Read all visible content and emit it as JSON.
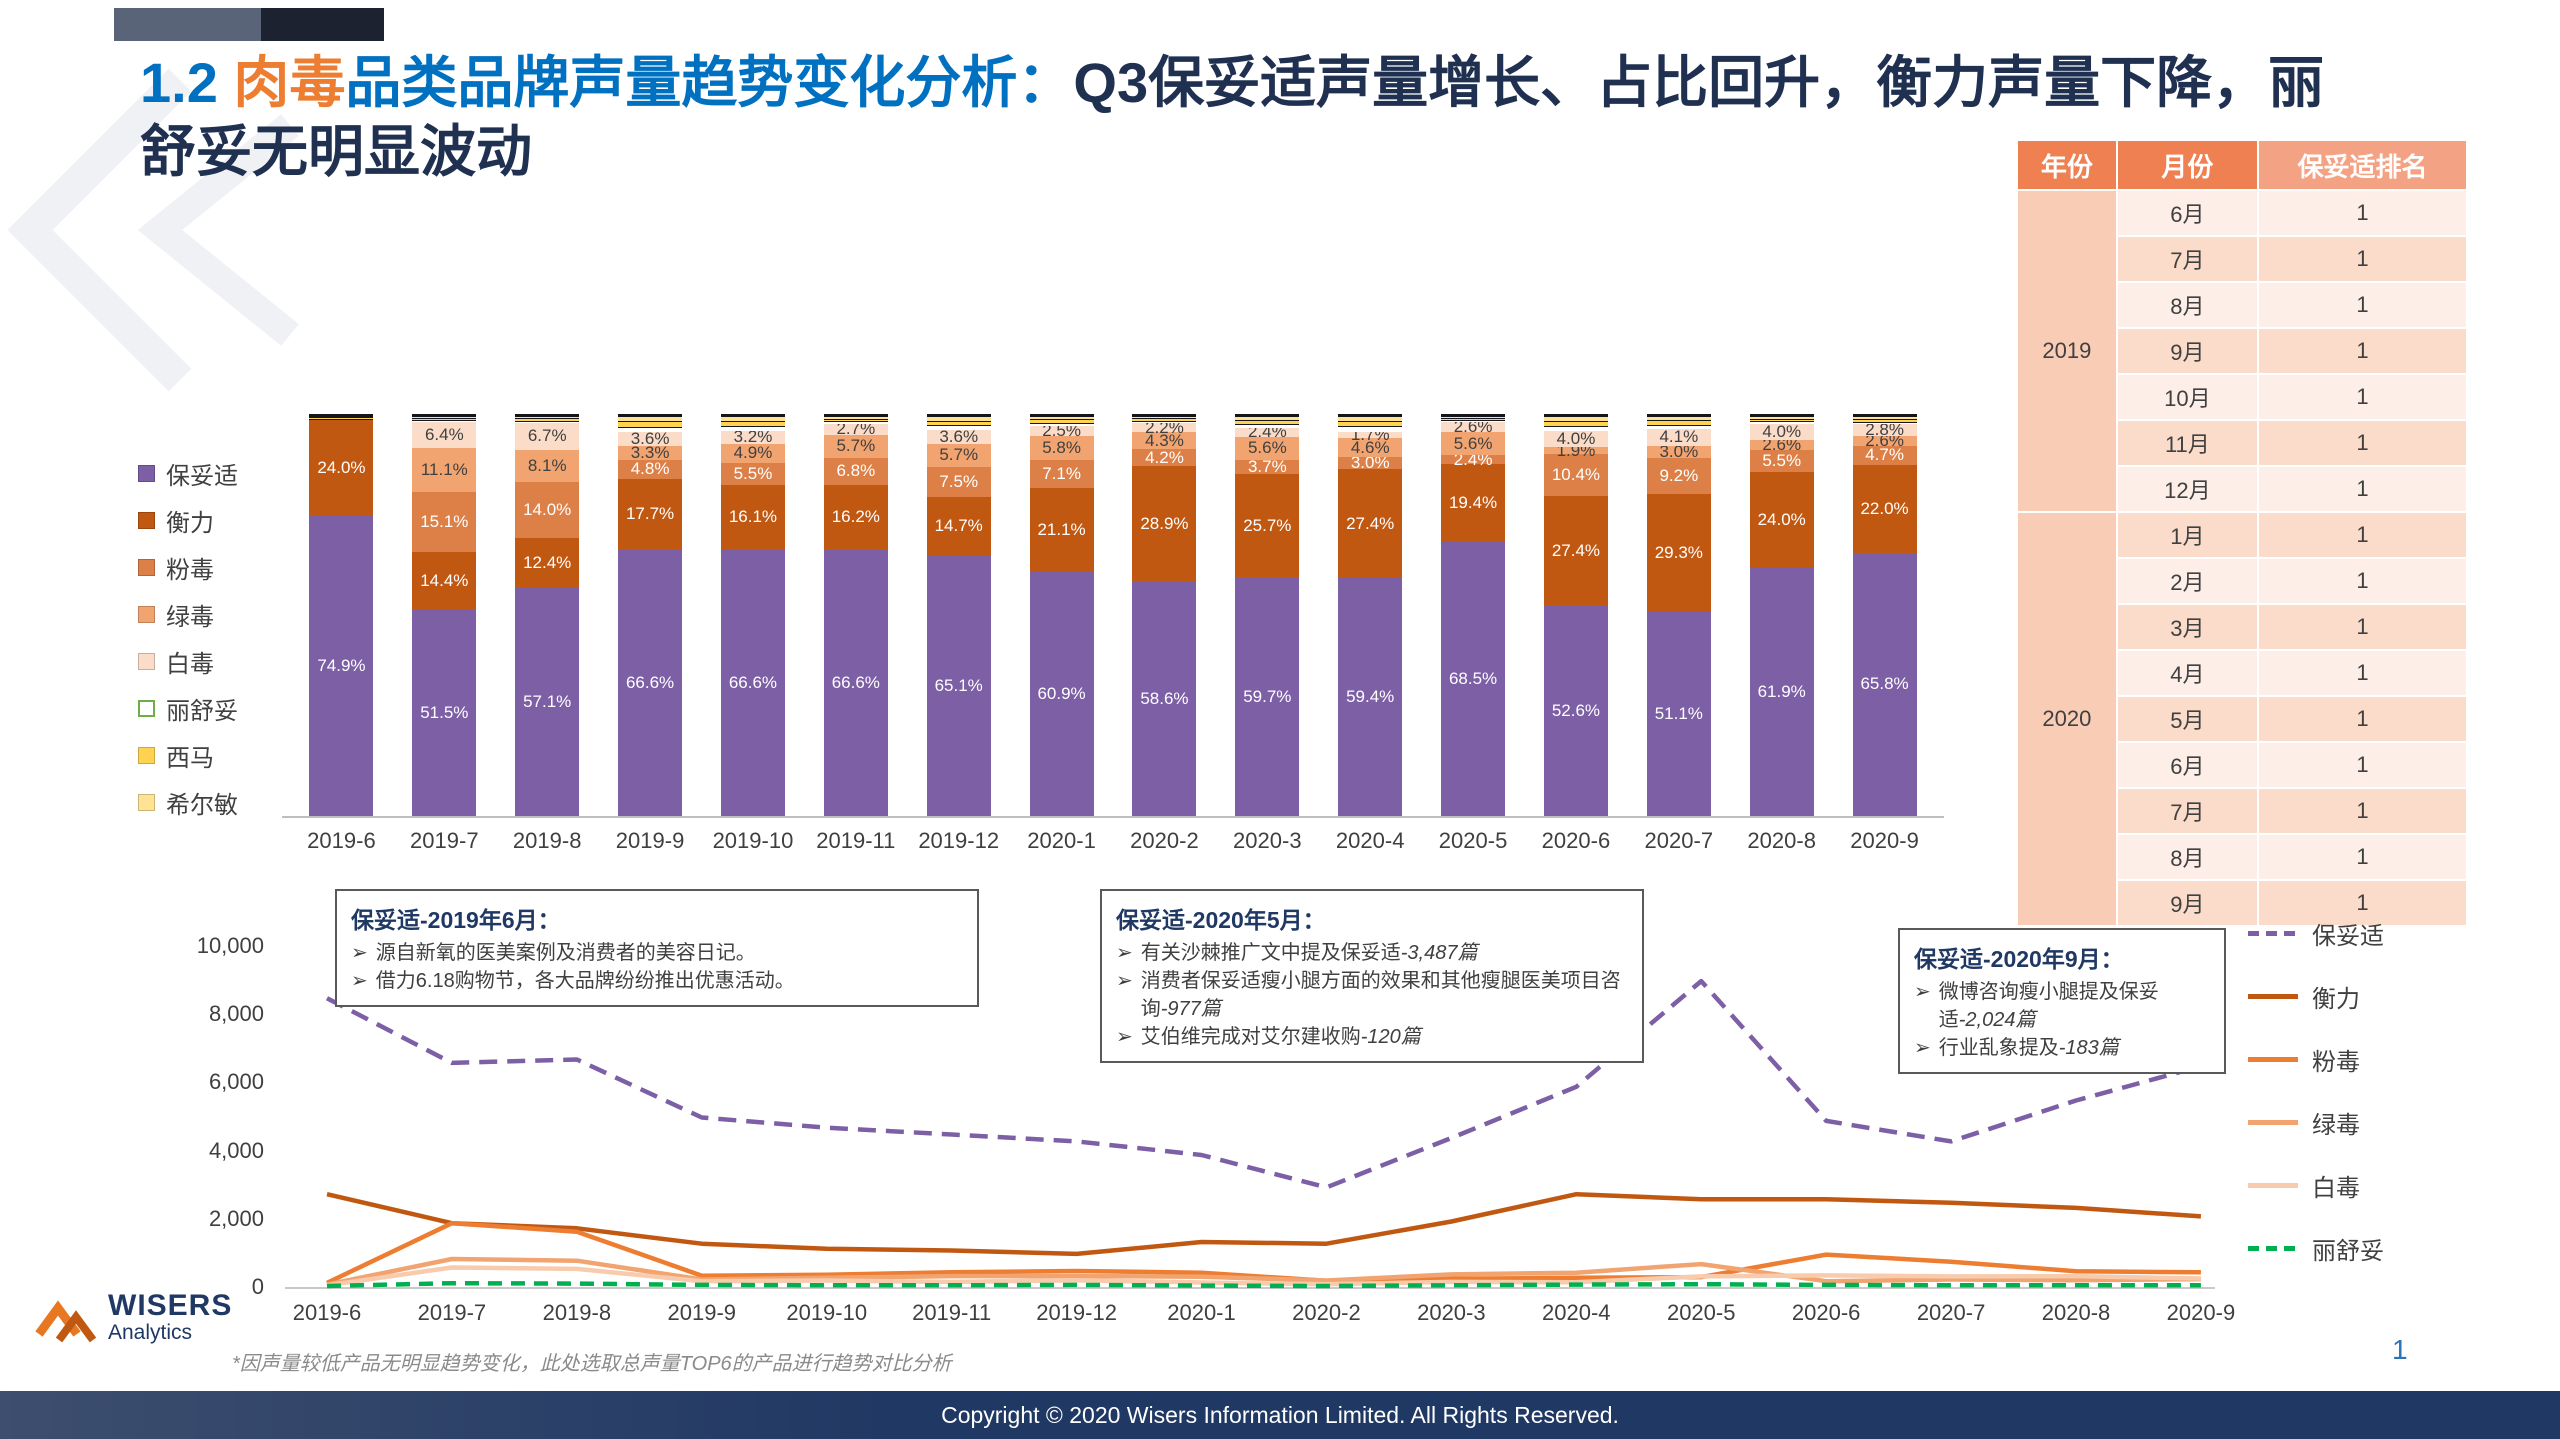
{
  "slide": {
    "title": {
      "number": "1.2 ",
      "highlight": "肉毒",
      "rest_blue": "品类品牌声量趋势变化分析：",
      "main": "Q3保妥适声量增长、占比回升，衡力声量下降，丽舒妥无明显波动"
    },
    "footnote": "*因声量较低产品无明显趋势变化，此处选取总声量TOP6的产品进行趋势对比分析",
    "footer_copyright": "Copyright © 2020 Wisers Information Limited. All Rights Reserved.",
    "page_number": "1",
    "logo": {
      "name": "WISERS",
      "sub": "Analytics"
    },
    "bullet_icon": "➢"
  },
  "rank_table": {
    "headers": [
      "年份",
      "月份",
      "保妥适排名"
    ],
    "groups": [
      {
        "year": "2019",
        "rows": [
          [
            "6月",
            "1"
          ],
          [
            "7月",
            "1"
          ],
          [
            "8月",
            "1"
          ],
          [
            "9月",
            "1"
          ],
          [
            "10月",
            "1"
          ],
          [
            "11月",
            "1"
          ],
          [
            "12月",
            "1"
          ]
        ]
      },
      {
        "year": "2020",
        "rows": [
          [
            "1月",
            "1"
          ],
          [
            "2月",
            "1"
          ],
          [
            "3月",
            "1"
          ],
          [
            "4月",
            "1"
          ],
          [
            "5月",
            "1"
          ],
          [
            "6月",
            "1"
          ],
          [
            "7月",
            "1"
          ],
          [
            "8月",
            "1"
          ],
          [
            "9月",
            "1"
          ]
        ]
      }
    ]
  },
  "notes": [
    {
      "title": "保妥适-2019年6月：",
      "bullets": [
        "源自新氧的医美案例及消费者的美容日记。",
        "借力6.18购物节，各大品牌纷纷推出优惠活动。"
      ]
    },
    {
      "title": "保妥适-2020年5月：",
      "bullets": [
        "有关沙棘推广文中提及保妥适-3,487篇",
        "消费者保妥适瘦小腿方面的效果和其他瘦腿医美项目咨询-977篇",
        "艾伯维完成对艾尔建收购-120篇"
      ]
    },
    {
      "title": "保妥适-2020年9月：",
      "bullets": [
        "微博咨询瘦小腿提及保妥适-2,024篇",
        "行业乱象提及-183篇"
      ]
    }
  ],
  "chart_data": [
    {
      "type": "bar",
      "stacked": true,
      "unit": "%",
      "legend_position": "left",
      "categories": [
        "2019-6",
        "2019-7",
        "2019-8",
        "2019-9",
        "2019-10",
        "2019-11",
        "2019-12",
        "2020-1",
        "2020-2",
        "2020-3",
        "2020-4",
        "2020-5",
        "2020-6",
        "2020-7",
        "2020-8",
        "2020-9"
      ],
      "series": [
        {
          "name": "保妥适",
          "color": "#7D5FA6",
          "values": [
            74.9,
            51.5,
            57.1,
            66.6,
            66.6,
            66.6,
            65.1,
            60.9,
            58.6,
            59.7,
            59.4,
            68.5,
            52.6,
            51.1,
            61.9,
            65.8
          ]
        },
        {
          "name": "衡力",
          "color": "#C15811",
          "values": [
            24.0,
            14.4,
            12.4,
            17.7,
            16.1,
            16.2,
            14.7,
            21.1,
            28.9,
            25.7,
            27.4,
            19.4,
            27.4,
            29.3,
            24.0,
            22.0
          ]
        },
        {
          "name": "粉毒",
          "color": "#DD8047",
          "values": [
            null,
            15.1,
            14.0,
            4.8,
            5.5,
            6.8,
            7.5,
            7.1,
            4.2,
            3.7,
            3.0,
            2.4,
            10.4,
            9.2,
            5.5,
            4.7
          ]
        },
        {
          "name": "绿毒",
          "color": "#F1A470",
          "values": [
            null,
            11.1,
            8.1,
            3.3,
            4.9,
            5.7,
            5.7,
            5.8,
            4.3,
            5.6,
            4.6,
            5.6,
            1.9,
            3.0,
            2.6,
            2.6
          ]
        },
        {
          "name": "白毒",
          "color": "#FADCC8",
          "values": [
            null,
            6.4,
            6.7,
            3.6,
            3.2,
            2.7,
            3.6,
            2.5,
            2.2,
            2.4,
            1.7,
            2.6,
            4.0,
            4.1,
            4.0,
            2.8
          ]
        },
        {
          "name": "丽舒妥",
          "color": "#FFFFFF",
          "swatch_border": "#70AD47",
          "values": [
            null,
            null,
            null,
            null,
            null,
            null,
            null,
            null,
            null,
            null,
            null,
            null,
            null,
            null,
            null,
            null
          ]
        },
        {
          "name": "西马",
          "color": "#FFD24F",
          "values": [
            null,
            null,
            null,
            null,
            null,
            null,
            null,
            null,
            null,
            null,
            null,
            null,
            null,
            null,
            null,
            null
          ]
        },
        {
          "name": "希尔敏",
          "color": "#FFE394",
          "values": [
            null,
            null,
            null,
            null,
            null,
            null,
            null,
            null,
            null,
            null,
            null,
            null,
            null,
            null,
            null,
            null
          ]
        }
      ]
    },
    {
      "type": "line",
      "legend_position": "right",
      "ylim": [
        0,
        10000
      ],
      "yticks": [
        "0",
        "2,000",
        "4,000",
        "6,000",
        "8,000",
        "10,000"
      ],
      "categories": [
        "2019-6",
        "2019-7",
        "2019-8",
        "2019-9",
        "2019-10",
        "2019-11",
        "2019-12",
        "2020-1",
        "2020-2",
        "2020-3",
        "2020-4",
        "2020-5",
        "2020-6",
        "2020-7",
        "2020-8",
        "2020-9"
      ],
      "series": [
        {
          "name": "保妥适",
          "color": "#7D5FA6",
          "dash": "18 10",
          "values": [
            8500,
            6600,
            6700,
            5000,
            4700,
            4500,
            4300,
            3900,
            2950,
            4400,
            5900,
            9000,
            4900,
            4300,
            5500,
            6500
          ]
        },
        {
          "name": "衡力",
          "color": "#C15811",
          "dash": null,
          "values": [
            2750,
            1900,
            1750,
            1300,
            1150,
            1100,
            1000,
            1350,
            1300,
            1950,
            2750,
            2600,
            2600,
            2500,
            2350,
            2100
          ]
        },
        {
          "name": "粉毒",
          "color": "#ED7D31",
          "dash": null,
          "values": [
            150,
            1900,
            1650,
            360,
            390,
            460,
            500,
            450,
            210,
            270,
            300,
            320,
            980,
            770,
            490,
            460
          ]
        },
        {
          "name": "绿毒",
          "color": "#F1A470",
          "dash": null,
          "values": [
            100,
            850,
            800,
            250,
            300,
            350,
            350,
            330,
            220,
            400,
            450,
            700,
            200,
            250,
            230,
            260
          ]
        },
        {
          "name": "白毒",
          "color": "#F8CBAD",
          "dash": null,
          "values": [
            80,
            600,
            560,
            200,
            220,
            180,
            230,
            160,
            110,
            180,
            170,
            340,
            370,
            340,
            350,
            280
          ]
        },
        {
          "name": "丽舒妥",
          "color": "#00B050",
          "dash": "14 9",
          "values": [
            60,
            140,
            130,
            90,
            80,
            80,
            90,
            70,
            60,
            80,
            100,
            110,
            90,
            80,
            80,
            80
          ]
        }
      ]
    }
  ]
}
